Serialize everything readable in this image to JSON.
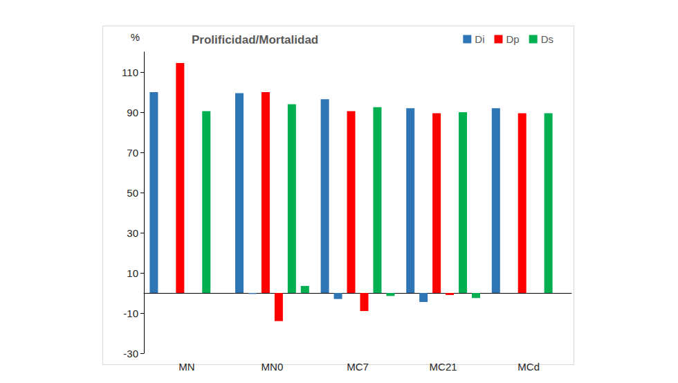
{
  "chart_data": {
    "type": "bar",
    "title": "Prolificidad/Mortalidad",
    "y_label": "%",
    "categories": [
      "MN",
      "MN0",
      "MC7",
      "MC21",
      "MCd"
    ],
    "series": [
      {
        "name": "Di",
        "color": "#2e75b6",
        "values": [
          100,
          99.5,
          96.5,
          92,
          92
        ]
      },
      {
        "name": "Di",
        "color": "#2e75b6",
        "values": [
          0,
          -0.5,
          -3,
          -4.5,
          0
        ]
      },
      {
        "name": "Dp",
        "color": "#ff0000",
        "values": [
          114.5,
          100,
          90.5,
          89.5,
          89.5
        ]
      },
      {
        "name": "Dp",
        "color": "#ff0000",
        "values": [
          0,
          -14,
          -9,
          -1,
          0
        ]
      },
      {
        "name": "Ds",
        "color": "#00b050",
        "values": [
          90.5,
          94,
          92.5,
          90,
          89.5
        ]
      },
      {
        "name": "Ds",
        "color": "#00b050",
        "values": [
          0,
          3.5,
          -1.5,
          -2.5,
          0
        ]
      }
    ],
    "ylim": [
      -30,
      120
    ],
    "yticks": [
      -30,
      -10,
      10,
      30,
      50,
      70,
      90,
      110
    ],
    "grid": false,
    "legend": "top-right"
  }
}
